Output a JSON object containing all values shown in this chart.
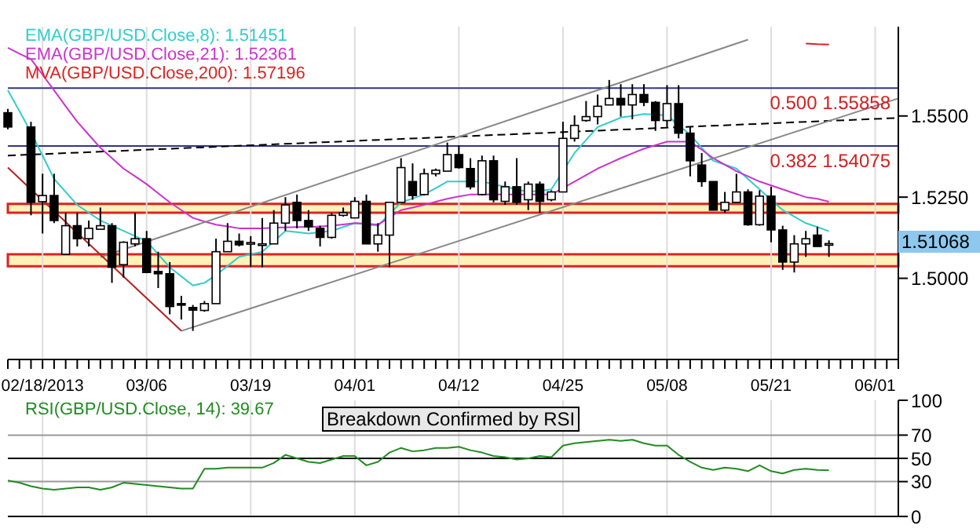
{
  "chart_data": [
    {
      "type": "candlestick",
      "categories": [
        null,
        null,
        null,
        "02/18/2013",
        null,
        null,
        null,
        null,
        null,
        null,
        null,
        null,
        "03/06",
        null,
        null,
        null,
        null,
        null,
        null,
        null,
        null,
        "03/19",
        null,
        null,
        null,
        null,
        null,
        null,
        null,
        null,
        "04/01",
        null,
        null,
        null,
        null,
        null,
        null,
        null,
        null,
        "04/12",
        null,
        null,
        null,
        null,
        null,
        null,
        null,
        null,
        "04/25",
        null,
        null,
        null,
        null,
        null,
        null,
        null,
        null,
        "05/08",
        null,
        null,
        null,
        null,
        null,
        null,
        null,
        null,
        "05/21",
        null,
        null,
        null,
        null,
        null,
        null,
        null,
        null,
        "06/01",
        null,
        null
      ],
      "ohlc": [
        [
          1.551,
          1.5522,
          1.5459,
          1.5466
        ],
        null,
        [
          1.5466,
          1.5482,
          1.5194,
          1.5234
        ],
        [
          1.5236,
          1.5322,
          1.5138,
          1.5255
        ],
        [
          1.5255,
          1.5322,
          1.517,
          1.5178
        ],
        [
          1.5074,
          1.5202,
          1.5074,
          1.5162
        ],
        [
          1.5162,
          1.5202,
          1.5098,
          1.5122
        ],
        [
          1.5122,
          1.5178,
          1.5098,
          1.5154
        ],
        [
          1.5151,
          1.5218,
          1.515,
          1.5162
        ],
        [
          1.5162,
          1.517,
          1.4986,
          1.5034
        ],
        [
          1.5042,
          1.5114,
          1.5002,
          1.5111
        ],
        [
          1.5106,
          1.5202,
          1.5098,
          1.5122
        ],
        [
          1.5122,
          1.5146,
          1.5018,
          1.5018
        ],
        [
          1.5021,
          1.5082,
          1.497,
          1.5014
        ],
        [
          1.5014,
          1.505,
          1.4889,
          1.4913
        ],
        [
          1.4922,
          1.4946,
          1.4873,
          1.4918
        ],
        [
          1.491,
          1.4918,
          1.4838,
          1.4902
        ],
        [
          1.4901,
          1.493,
          1.4897,
          1.4922
        ],
        [
          1.4922,
          1.5122,
          1.4922,
          1.5082
        ],
        [
          1.5082,
          1.517,
          1.5082,
          1.5114
        ],
        [
          1.5114,
          1.5138,
          1.5098,
          1.5103
        ],
        [
          1.5106,
          1.513,
          1.5034,
          1.511
        ],
        [
          1.5106,
          1.5186,
          1.5034,
          1.5106
        ],
        [
          1.5106,
          1.521,
          1.5106,
          1.517
        ],
        [
          1.517,
          1.525,
          1.5146,
          1.5226
        ],
        [
          1.5234,
          1.5258,
          1.5154,
          1.5178
        ],
        [
          1.5178,
          1.521,
          1.5146,
          1.5159
        ],
        [
          1.5154,
          1.5162,
          1.5098,
          1.5126
        ],
        [
          1.5126,
          1.5202,
          1.5122,
          1.5194
        ],
        [
          1.5194,
          1.5218,
          1.519,
          1.5202
        ],
        [
          1.5186,
          1.525,
          1.5186,
          1.5237
        ],
        [
          1.5237,
          1.5258,
          1.5106,
          1.5106
        ],
        [
          1.5106,
          1.517,
          1.5082,
          1.5133
        ],
        [
          1.5133,
          1.5234,
          1.5034,
          1.5234
        ],
        [
          1.5234,
          1.537,
          1.5234,
          1.5341
        ],
        [
          1.5298,
          1.5354,
          1.5242,
          1.5255
        ],
        [
          1.5258,
          1.5338,
          1.5255,
          1.5322
        ],
        [
          1.5322,
          1.5338,
          1.5314,
          1.5333
        ],
        [
          1.533,
          1.5418,
          1.533,
          1.5381
        ],
        [
          1.5381,
          1.541,
          1.5338,
          1.5341
        ],
        [
          1.5338,
          1.537,
          1.5274,
          1.5282
        ],
        [
          1.5258,
          1.5378,
          1.5255,
          1.5362
        ],
        [
          1.5362,
          1.5378,
          1.5234,
          1.5242
        ],
        [
          1.5237,
          1.5298,
          1.5226,
          1.5282
        ],
        [
          1.5282,
          1.537,
          1.5226,
          1.5234
        ],
        [
          1.5242,
          1.5298,
          1.521,
          1.529
        ],
        [
          1.529,
          1.5298,
          1.5202,
          1.5237
        ],
        [
          1.5242,
          1.5271,
          1.5237,
          1.5266
        ],
        [
          1.5266,
          1.5482,
          1.5266,
          1.5431
        ],
        [
          1.5431,
          1.5502,
          1.5421,
          1.5471
        ],
        [
          1.5486,
          1.5546,
          1.5482,
          1.5498
        ],
        [
          1.5498,
          1.5566,
          1.5474,
          1.553
        ],
        [
          1.5534,
          1.5611,
          1.5534,
          1.5554
        ],
        [
          1.5554,
          1.5598,
          1.5498,
          1.5534
        ],
        [
          1.5534,
          1.5598,
          1.549,
          1.5566
        ],
        [
          1.5566,
          1.5598,
          1.553,
          1.5542
        ],
        [
          1.5542,
          1.5546,
          1.5454,
          1.5486
        ],
        [
          1.5486,
          1.5595,
          1.5466,
          1.5538
        ],
        [
          1.5538,
          1.5595,
          1.5431,
          1.5447
        ],
        [
          1.5447,
          1.5466,
          1.5314,
          1.5362
        ],
        [
          1.5349,
          1.5386,
          1.5282,
          1.5298
        ],
        [
          1.5298,
          1.5298,
          1.521,
          1.521
        ],
        [
          1.521,
          1.5266,
          1.5202,
          1.5234
        ],
        [
          1.5234,
          1.5322,
          1.5234,
          1.5266
        ],
        [
          1.5266,
          1.5274,
          1.5162,
          1.5165
        ],
        [
          1.5165,
          1.5271,
          1.5162,
          1.5253
        ],
        [
          1.5253,
          1.5282,
          1.5111,
          1.5149
        ],
        [
          1.5149,
          1.5162,
          1.5026,
          1.505
        ],
        [
          1.505,
          1.5133,
          1.5018,
          1.5106
        ],
        [
          1.5106,
          1.5146,
          1.5066,
          1.5122
        ],
        [
          1.5133,
          1.5159,
          1.5098,
          1.5098
        ],
        [
          1.5105,
          1.5117,
          1.5066,
          1.51068
        ],
        null,
        null,
        null,
        null,
        null,
        null
      ],
      "series": [
        {
          "type": "line",
          "name": "EMA(GBP/USD.Close,8): 1.51451",
          "color": "#33cccc",
          "values": [
            1.5579,
            1.5515,
            1.545,
            1.5378,
            1.5306,
            1.5266,
            1.5226,
            1.5202,
            1.5178,
            1.5162,
            1.5146,
            1.513,
            1.5114,
            1.5074,
            1.5034,
            1.5006,
            1.4978,
            1.4986,
            1.501,
            1.5038,
            1.5066,
            1.5074,
            1.5082,
            1.5114,
            1.5146,
            1.5142,
            1.5138,
            1.5142,
            1.5146,
            1.5158,
            1.517,
            1.5166,
            1.5162,
            1.5198,
            1.5234,
            1.5246,
            1.5258,
            1.5278,
            1.5298,
            1.5298,
            1.5298,
            1.5298,
            1.529,
            1.5282,
            1.5274,
            1.5266,
            1.527,
            1.5274,
            1.533,
            1.5386,
            1.5426,
            1.5466,
            1.548,
            1.5495,
            1.55,
            1.5506,
            1.5504,
            1.5502,
            1.5472,
            1.5442,
            1.5402,
            1.5362,
            1.535,
            1.5338,
            1.5306,
            1.5274,
            1.5242,
            1.521,
            1.519,
            1.517,
            1.5158,
            1.5145,
            null,
            null,
            null,
            null,
            null,
            null
          ]
        },
        {
          "type": "line",
          "name": "EMA(GBP/USD.Close,21): 1.52361",
          "color": "#cc33cc",
          "values": [
            1.571,
            1.5692,
            1.5675,
            1.5627,
            1.5579,
            1.553,
            1.5482,
            1.5442,
            1.5402,
            1.537,
            1.5338,
            1.5314,
            1.529,
            1.5262,
            1.5234,
            1.521,
            1.5186,
            1.5175,
            1.5165,
            1.516,
            1.5154,
            1.5154,
            1.5154,
            1.5156,
            1.5157,
            1.5158,
            1.5158,
            1.516,
            1.5162,
            1.5166,
            1.517,
            1.5168,
            1.5165,
            1.5188,
            1.521,
            1.5218,
            1.5226,
            1.5236,
            1.5245,
            1.5252,
            1.5258,
            1.5258,
            1.5258,
            1.5258,
            1.5258,
            1.5258,
            1.5258,
            1.5258,
            1.5278,
            1.5298,
            1.5318,
            1.5338,
            1.5354,
            1.537,
            1.5385,
            1.5399,
            1.541,
            1.5421,
            1.5421,
            1.5421,
            1.5396,
            1.537,
            1.535,
            1.533,
            1.5314,
            1.5298,
            1.5286,
            1.5274,
            1.5262,
            1.525,
            1.5245,
            1.5236,
            null,
            null,
            null,
            null,
            null,
            null
          ]
        },
        {
          "type": "line",
          "name": "MVA(GBP/USD.Close,200): 1.57196",
          "color": "#dd2222",
          "values": [
            null,
            null,
            null,
            null,
            null,
            null,
            null,
            null,
            null,
            null,
            null,
            null,
            null,
            null,
            null,
            null,
            null,
            null,
            null,
            null,
            null,
            null,
            null,
            null,
            null,
            null,
            null,
            null,
            null,
            null,
            null,
            null,
            null,
            null,
            null,
            null,
            null,
            null,
            null,
            null,
            null,
            null,
            null,
            null,
            null,
            null,
            null,
            null,
            null,
            null,
            null,
            null,
            null,
            null,
            null,
            null,
            null,
            null,
            null,
            null,
            null,
            null,
            null,
            null,
            null,
            null,
            null,
            null,
            null,
            1.5723,
            1.5721,
            1.572,
            null,
            null,
            null,
            null,
            null,
            null
          ]
        },
        {
          "type": "line",
          "color": "#000000",
          "line_style": "dashed",
          "values": [
            1.5378,
            null,
            null,
            null,
            null,
            null,
            null,
            null,
            null,
            null,
            null,
            null,
            null,
            null,
            null,
            null,
            null,
            null,
            null,
            null,
            null,
            null,
            null,
            null,
            null,
            null,
            null,
            null,
            null,
            null,
            null,
            null,
            null,
            null,
            null,
            null,
            null,
            null,
            null,
            null,
            null,
            null,
            null,
            null,
            null,
            null,
            null,
            null,
            null,
            null,
            null,
            null,
            null,
            null,
            null,
            null,
            null,
            null,
            null,
            null,
            null,
            null,
            null,
            null,
            null,
            null,
            null,
            null,
            null,
            null,
            null,
            null,
            null,
            null,
            null,
            null,
            null,
            1.5494
          ]
        },
        {
          "type": "line",
          "color": "#888888",
          "values": [
            null,
            null,
            null,
            null,
            null,
            null,
            null,
            null,
            1.5065,
            null,
            null,
            null,
            null,
            null,
            null,
            null,
            null,
            null,
            null,
            null,
            null,
            null,
            null,
            null,
            null,
            null,
            null,
            null,
            null,
            null,
            null,
            null,
            null,
            null,
            null,
            null,
            null,
            null,
            null,
            null,
            null,
            null,
            null,
            null,
            null,
            null,
            null,
            null,
            null,
            null,
            null,
            null,
            null,
            null,
            null,
            null,
            null,
            null,
            null,
            null,
            null,
            null,
            null,
            null,
            1.5735,
            null,
            null,
            null,
            null,
            null,
            null,
            null,
            null,
            null,
            null,
            null,
            null,
            null
          ]
        },
        {
          "type": "line",
          "color": "#888888",
          "values": [
            null,
            null,
            null,
            null,
            null,
            null,
            null,
            null,
            null,
            null,
            null,
            null,
            null,
            null,
            null,
            1.4838,
            null,
            null,
            null,
            null,
            null,
            null,
            null,
            null,
            null,
            null,
            null,
            null,
            null,
            null,
            null,
            null,
            null,
            null,
            null,
            null,
            null,
            null,
            null,
            null,
            null,
            null,
            null,
            null,
            null,
            null,
            null,
            null,
            null,
            null,
            null,
            null,
            null,
            null,
            null,
            null,
            null,
            null,
            null,
            null,
            null,
            null,
            null,
            null,
            null,
            null,
            null,
            null,
            null,
            null,
            null,
            null,
            null,
            null,
            null,
            null,
            null,
            1.5554
          ]
        },
        {
          "type": "line",
          "color": "#b22222",
          "values": [
            1.5341,
            null,
            null,
            null,
            null,
            null,
            null,
            null,
            null,
            null,
            null,
            null,
            null,
            null,
            null,
            1.4838,
            null,
            null,
            null,
            null,
            null,
            null,
            null,
            null,
            null,
            null,
            null,
            null,
            null,
            null,
            null,
            null,
            null,
            null,
            null,
            null,
            null,
            null,
            null,
            null,
            null,
            null,
            null,
            null,
            null,
            null,
            null,
            null,
            null,
            null,
            null,
            null,
            null,
            null,
            null,
            null,
            null,
            null,
            null,
            null,
            null,
            null,
            null,
            null,
            null,
            null,
            null,
            null,
            null,
            null,
            null,
            null,
            null,
            null,
            null,
            null,
            null,
            null
          ]
        }
      ],
      "ylim": [
        1.475,
        1.5775
      ],
      "yticks": [
        {
          "value": 1.5,
          "label": "1.5000"
        },
        {
          "value": 1.525,
          "label": "1.5250"
        },
        {
          "value": 1.55,
          "label": "1.5500"
        }
      ],
      "ref_lines": [
        {
          "axis": "y",
          "value": 1.55858,
          "label": "0.500 1.55858",
          "color": "#333388"
        },
        {
          "axis": "y",
          "value": 1.54075,
          "label": "0.382 1.54075",
          "color": "#333388"
        }
      ],
      "bands": [
        {
          "axis": "y",
          "from": 1.5202,
          "to": 1.5229,
          "color": "#fff2b8"
        },
        {
          "axis": "y",
          "from": 1.5037,
          "to": 1.5074,
          "color": "#fff2b8"
        }
      ],
      "annotations": [
        "1.51068"
      ],
      "grid": "x",
      "legend": "top left"
    },
    {
      "type": "line",
      "categories": [
        null,
        null,
        null,
        null,
        null,
        null,
        null,
        null,
        null,
        null,
        null,
        null,
        null,
        null,
        null,
        null,
        null,
        null,
        null,
        null,
        null,
        null,
        null,
        null,
        null,
        null,
        null,
        null,
        null,
        null,
        null,
        null,
        null,
        null,
        null,
        null,
        null,
        null,
        null,
        null,
        null,
        null,
        null,
        null,
        null,
        null,
        null,
        null,
        null,
        null,
        null,
        null,
        null,
        null,
        null,
        null,
        null,
        null,
        null,
        null,
        null,
        null,
        null,
        null,
        null,
        null,
        null,
        null,
        null,
        null,
        null,
        null,
        null,
        null,
        null,
        null,
        null,
        null
      ],
      "series": [
        {
          "name": "RSI(GBP/USD.Close, 14): 39.67",
          "color": "#228b22",
          "values": [
            31,
            29,
            26,
            24,
            23,
            24,
            25,
            25,
            23,
            25,
            29,
            28,
            27,
            26,
            25,
            24,
            24,
            41,
            41,
            42,
            42,
            42,
            42,
            46,
            53,
            50,
            47,
            46,
            49,
            52,
            52,
            44,
            47,
            55,
            59,
            56,
            57,
            59,
            59,
            60,
            57,
            55,
            52,
            51,
            49,
            50,
            52,
            51,
            61,
            63,
            64,
            65,
            66,
            65,
            66,
            63,
            61,
            61,
            53,
            47,
            42,
            40,
            42,
            41,
            39,
            44,
            39,
            37,
            40,
            41,
            40,
            39.67,
            null,
            null,
            null,
            null,
            null,
            null
          ]
        }
      ],
      "ylim": [
        0,
        100
      ],
      "yticks": [
        0,
        30,
        50,
        70,
        100
      ],
      "ref_lines": [
        {
          "axis": "y",
          "value": 70,
          "color": "#999999"
        },
        {
          "axis": "y",
          "value": 50,
          "color": "#000000"
        },
        {
          "axis": "y",
          "value": 30,
          "color": "#999999"
        }
      ],
      "annotations": [
        "Breakdown Confirmed by RSI"
      ],
      "grid": "x",
      "tick_labels": "y",
      "legend": "top left"
    }
  ]
}
